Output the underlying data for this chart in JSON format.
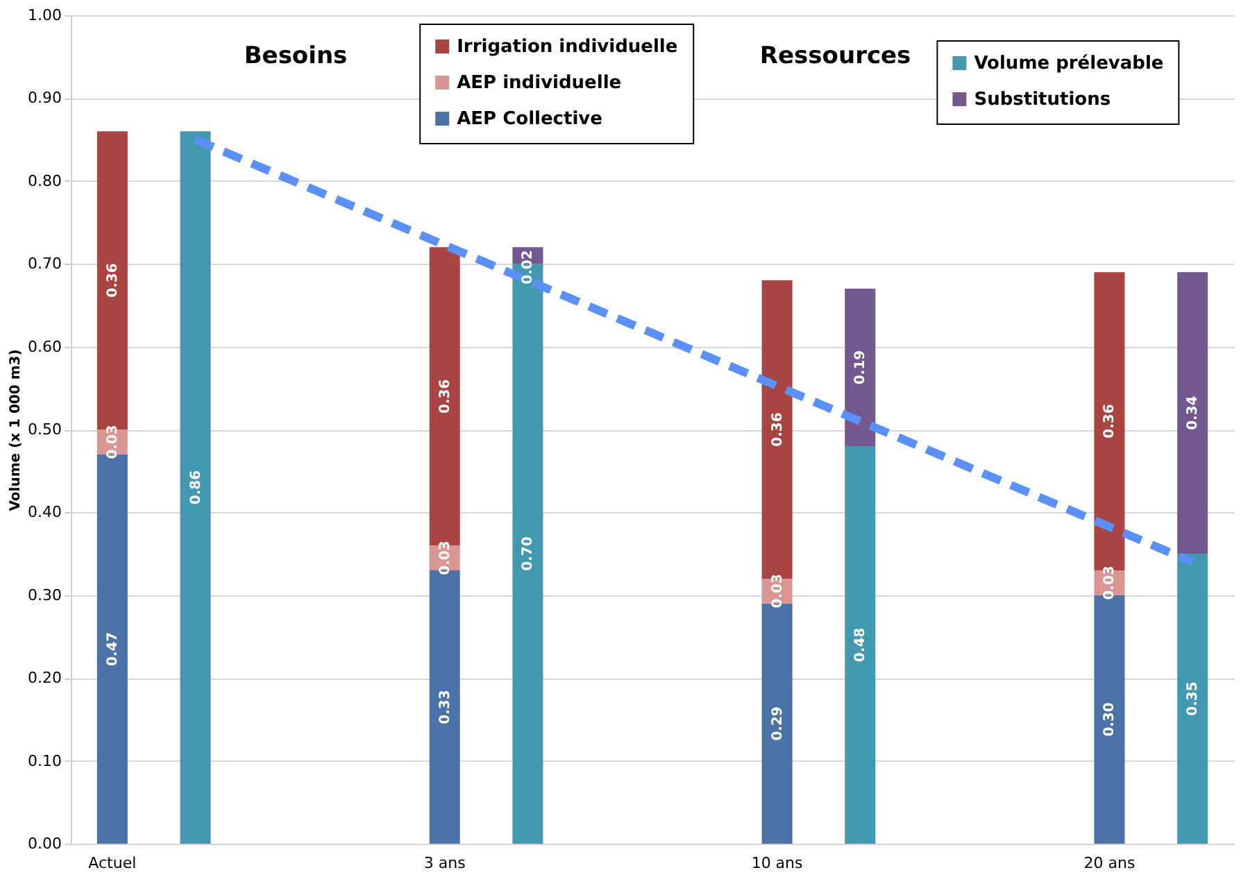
{
  "chart_data": {
    "type": "bar",
    "stacked": true,
    "ylabel": "Volume (x 1 000 m3)",
    "categories": [
      "Actuel",
      null,
      null,
      null,
      "3 ans",
      null,
      null,
      null,
      "10 ans",
      null,
      null,
      null,
      "20 ans",
      null
    ],
    "series": [
      {
        "name": "AEP Collective",
        "color": "#4a72a6",
        "values": [
          0.47,
          null,
          null,
          null,
          0.33,
          null,
          null,
          null,
          0.29,
          null,
          null,
          null,
          0.3,
          null
        ],
        "value_labels": [
          "0.47",
          null,
          null,
          null,
          "0.33",
          null,
          null,
          null,
          "0.29",
          null,
          null,
          null,
          "0.30",
          null
        ]
      },
      {
        "name": "AEP individuelle",
        "color": "#d99694",
        "values": [
          0.03,
          null,
          null,
          null,
          0.03,
          null,
          null,
          null,
          0.03,
          null,
          null,
          null,
          0.03,
          null
        ],
        "value_labels": [
          "0.03",
          null,
          null,
          null,
          "0.03",
          null,
          null,
          null,
          "0.03",
          null,
          null,
          null,
          "0.03",
          null
        ]
      },
      {
        "name": "Irrigation individuelle",
        "color": "#a84543",
        "values": [
          0.36,
          null,
          null,
          null,
          0.36,
          null,
          null,
          null,
          0.36,
          null,
          null,
          null,
          0.36,
          null
        ],
        "value_labels": [
          "0.36",
          null,
          null,
          null,
          "0.36",
          null,
          null,
          null,
          "0.36",
          null,
          null,
          null,
          "0.36",
          null
        ]
      },
      {
        "name": "Volume prélevable",
        "color": "#4298ae",
        "values": [
          null,
          0.86,
          null,
          null,
          null,
          0.7,
          null,
          null,
          null,
          0.48,
          null,
          null,
          null,
          0.35
        ],
        "value_labels": [
          null,
          "0.86",
          null,
          null,
          null,
          "0.70",
          null,
          null,
          null,
          "0.48",
          null,
          null,
          null,
          "0.35"
        ]
      },
      {
        "name": "Substitutions",
        "color": "#72588e",
        "values": [
          null,
          null,
          null,
          null,
          null,
          0.02,
          null,
          null,
          null,
          0.19,
          null,
          null,
          null,
          0.34
        ],
        "value_labels": [
          null,
          null,
          null,
          null,
          null,
          "0.02",
          null,
          null,
          null,
          "0.19",
          null,
          null,
          null,
          "0.34"
        ]
      },
      {
        "type": "line",
        "color": "#5b8ff9",
        "line_style": "dashed",
        "values": [
          null,
          0.85,
          null,
          null,
          null,
          null,
          null,
          null,
          null,
          null,
          null,
          null,
          null,
          0.34
        ]
      }
    ],
    "ylim": [
      0,
      1.0
    ],
    "yticks": [
      {
        "value": 0,
        "label": "0.00"
      },
      {
        "value": 0.1,
        "label": "0.10"
      },
      {
        "value": 0.2,
        "label": "0.20"
      },
      {
        "value": 0.3,
        "label": "0.30"
      },
      {
        "value": 0.4,
        "label": "0.40"
      },
      {
        "value": 0.5,
        "label": "0.50"
      },
      {
        "value": 0.6,
        "label": "0.60"
      },
      {
        "value": 0.7,
        "label": "0.70"
      },
      {
        "value": 0.8,
        "label": "0.80"
      },
      {
        "value": 0.9,
        "label": "0.90"
      },
      {
        "value": 1.0,
        "label": "1.00"
      }
    ],
    "grid": "y",
    "legend": "top",
    "annotations": [
      "Besoins",
      "Ressources"
    ]
  }
}
